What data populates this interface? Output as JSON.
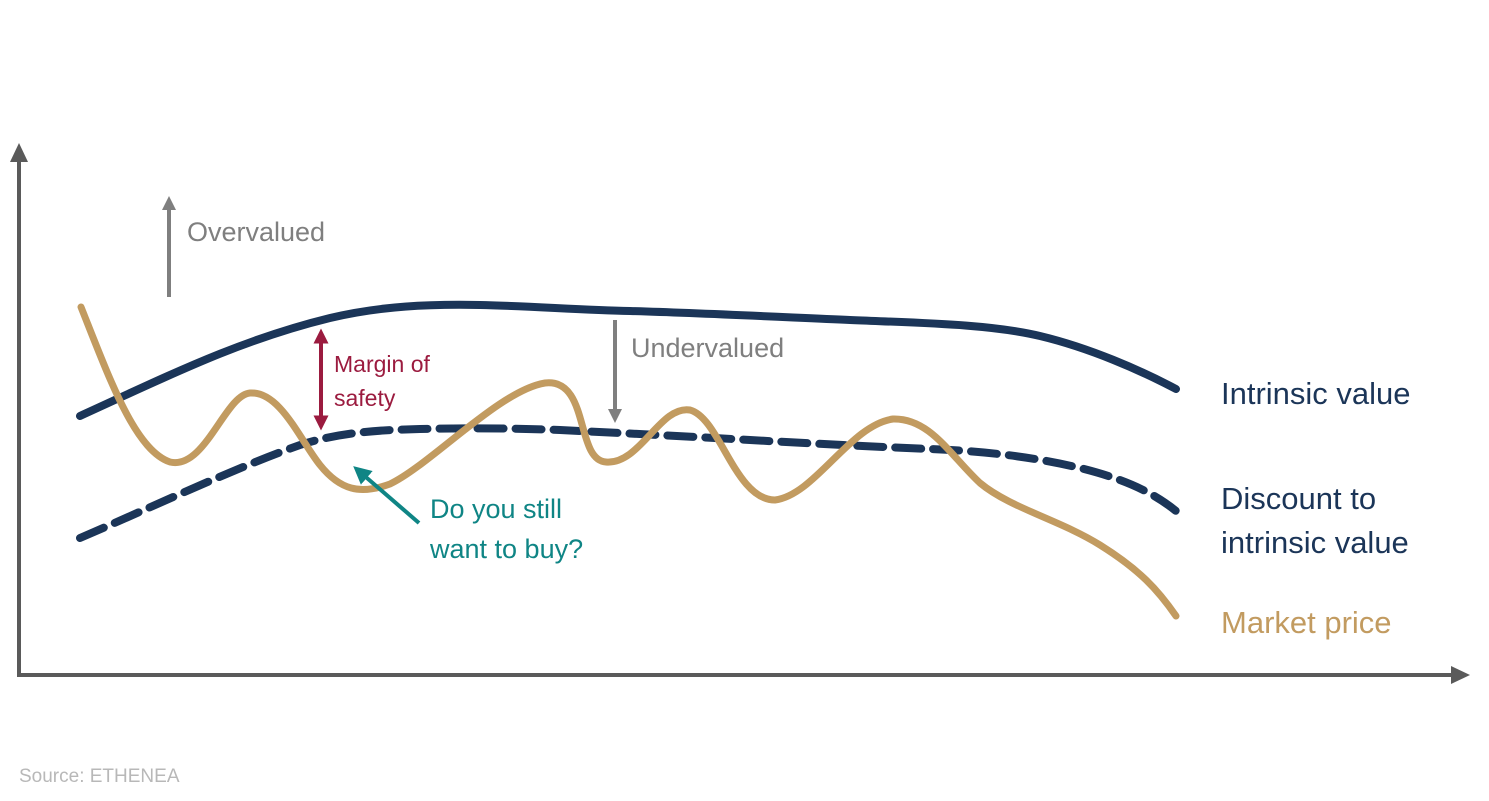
{
  "diagram": {
    "annotations": {
      "overvalued": "Overvalued",
      "undervalued": "Undervalued",
      "margin_of_safety": [
        "Margin of",
        "safety"
      ],
      "question": [
        "Do you still",
        "want to buy?"
      ]
    },
    "legend": {
      "intrinsic_value": "Intrinsic value",
      "discount": [
        "Discount to",
        "intrinsic value"
      ],
      "market_price": "Market price"
    },
    "source": "Source: ETHENEA"
  },
  "colors": {
    "axis": "#5a5a5a",
    "intrinsic_value": "#1b3558",
    "market_price": "#c29b60",
    "margin_of_safety": "#9b1b3f",
    "question": "#0f8585",
    "annotation_gray": "#7f7f7f",
    "source": "#b8b8b8"
  }
}
